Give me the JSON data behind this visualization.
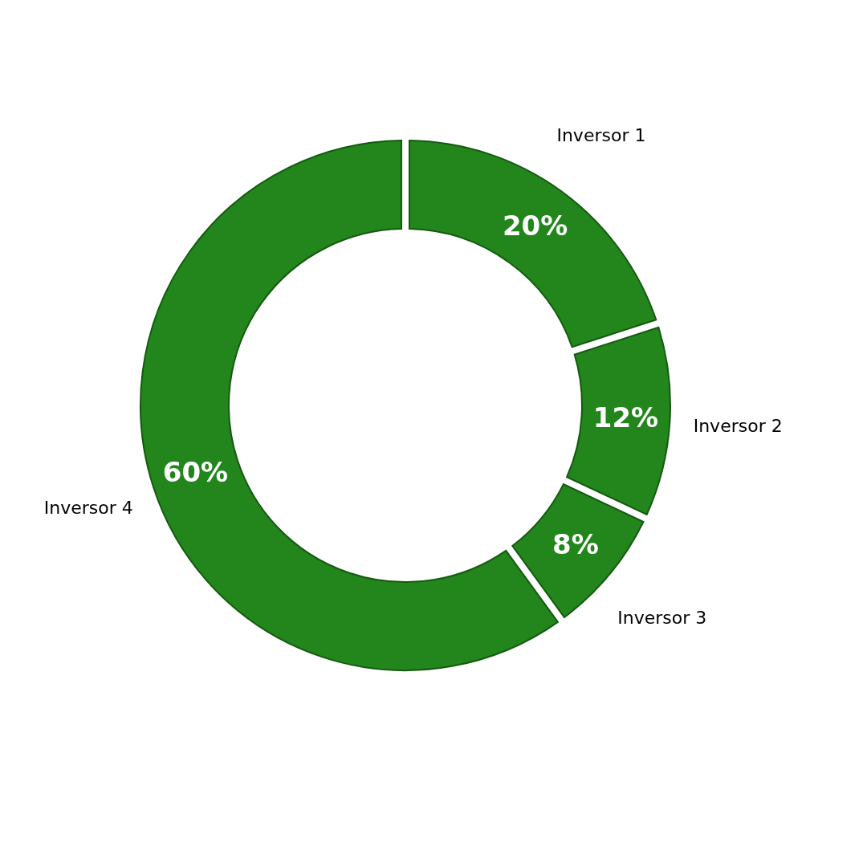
{
  "chart_data": {
    "type": "donut",
    "categories": [
      "Inversor 1",
      "Inversor 2",
      "Inversor 3",
      "Inversor 4"
    ],
    "values": [
      20,
      12,
      8,
      60
    ],
    "value_labels": [
      "20%",
      "12%",
      "8%",
      "60%"
    ],
    "colors": [
      "#22861c",
      "#22861c",
      "#22861c",
      "#22861c"
    ],
    "legend": false
  }
}
